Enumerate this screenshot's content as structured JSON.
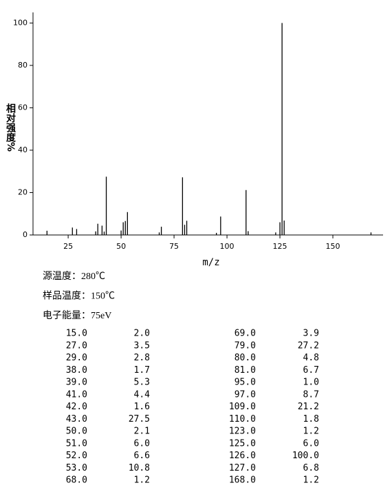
{
  "chart_data": {
    "type": "bar",
    "xlabel": "m/z",
    "ylabel": "相对强度%",
    "x": [
      15,
      27,
      29,
      38,
      39,
      41,
      42,
      43,
      50,
      51,
      52,
      53,
      68,
      69,
      79,
      80,
      81,
      95,
      97,
      109,
      110,
      123,
      125,
      126,
      127,
      168
    ],
    "values": [
      2.0,
      3.5,
      2.8,
      1.7,
      5.3,
      4.4,
      1.6,
      27.5,
      2.1,
      6.0,
      6.6,
      10.8,
      1.2,
      3.9,
      27.2,
      4.8,
      6.7,
      1.0,
      8.7,
      21.2,
      1.8,
      1.2,
      6.0,
      100.0,
      6.8,
      1.2
    ],
    "color": "#000000",
    "xlim": [
      8.4,
      173.7
    ],
    "ylim": [
      0,
      105
    ],
    "xticks": [
      25,
      50,
      75,
      100,
      125,
      150
    ],
    "yticks": [
      0,
      20,
      40,
      60,
      80,
      100
    ]
  },
  "info": [
    "源温度：280℃",
    "样品温度：150℃",
    "电子能量：75eV"
  ],
  "table": {
    "rows": [
      [
        "15.0",
        "2.0",
        "69.0",
        "3.9"
      ],
      [
        "27.0",
        "3.5",
        "79.0",
        "27.2"
      ],
      [
        "29.0",
        "2.8",
        "80.0",
        "4.8"
      ],
      [
        "38.0",
        "1.7",
        "81.0",
        "6.7"
      ],
      [
        "39.0",
        "5.3",
        "95.0",
        "1.0"
      ],
      [
        "41.0",
        "4.4",
        "97.0",
        "8.7"
      ],
      [
        "42.0",
        "1.6",
        "109.0",
        "21.2"
      ],
      [
        "43.0",
        "27.5",
        "110.0",
        "1.8"
      ],
      [
        "50.0",
        "2.1",
        "123.0",
        "1.2"
      ],
      [
        "51.0",
        "6.0",
        "125.0",
        "6.0"
      ],
      [
        "52.0",
        "6.6",
        "126.0",
        "100.0"
      ],
      [
        "53.0",
        "10.8",
        "127.0",
        "6.8"
      ],
      [
        "68.0",
        "1.2",
        "168.0",
        "1.2"
      ]
    ]
  }
}
